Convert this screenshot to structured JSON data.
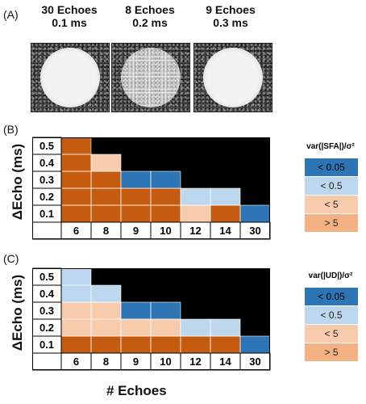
{
  "panels": {
    "a_label": "(A)",
    "b_label": "(B)",
    "c_label": "(C)"
  },
  "images": [
    {
      "line1": "30 Echoes",
      "line2": "0.1 ms"
    },
    {
      "line1": "8 Echoes",
      "line2": "0.2 ms"
    },
    {
      "line1": "9 Echoes",
      "line2": "0.3 ms"
    }
  ],
  "axis": {
    "ylabel": "ΔEcho (ms)",
    "xlabel": "# Echoes"
  },
  "colors": {
    "black": "#000000",
    "dark_blue": "#2e75b6",
    "light_blue": "#bdd7ee",
    "peach": "#f8cbad",
    "orange": "#c55a11",
    "legend_peach": "#f4b183"
  },
  "chart_data": [
    {
      "type": "heatmap",
      "panel": "(B)",
      "legend_title": "var(|SFA|)/σ²",
      "legend": [
        "< 0.05",
        "< 0.5",
        "< 5",
        "> 5"
      ],
      "x": [
        "6",
        "8",
        "9",
        "10",
        "12",
        "14",
        "30"
      ],
      "y": [
        "0.5",
        "0.4",
        "0.3",
        "0.2",
        "0.1"
      ],
      "cells": [
        [
          "> 5",
          null,
          null,
          null,
          null,
          null,
          null
        ],
        [
          "> 5",
          "< 5",
          null,
          null,
          null,
          null,
          null
        ],
        [
          "> 5",
          "> 5",
          "< 0.05",
          "< 0.05",
          null,
          null,
          null
        ],
        [
          "> 5",
          "> 5",
          "> 5",
          "> 5",
          "< 0.5",
          "< 0.5",
          null
        ],
        [
          "> 5",
          "> 5",
          "> 5",
          "> 5",
          "< 5",
          "> 5",
          "< 0.05"
        ]
      ]
    },
    {
      "type": "heatmap",
      "panel": "(C)",
      "legend_title": "var(|UD|)/σ²",
      "legend": [
        "< 0.05",
        "< 0.5",
        "< 5",
        "> 5"
      ],
      "x": [
        "6",
        "8",
        "9",
        "10",
        "12",
        "14",
        "30"
      ],
      "y": [
        "0.5",
        "0.4",
        "0.3",
        "0.2",
        "0.1"
      ],
      "cells": [
        [
          "< 0.5",
          null,
          null,
          null,
          null,
          null,
          null
        ],
        [
          "< 0.5",
          "< 0.5",
          null,
          null,
          null,
          null,
          null
        ],
        [
          "< 5",
          "< 5",
          "< 0.05",
          "< 0.05",
          null,
          null,
          null
        ],
        [
          "< 5",
          "< 5",
          "< 5",
          "< 5",
          "< 0.5",
          "< 0.5",
          null
        ],
        [
          "> 5",
          "> 5",
          "> 5",
          "> 5",
          "> 5",
          "> 5",
          "< 0.05"
        ]
      ]
    }
  ]
}
